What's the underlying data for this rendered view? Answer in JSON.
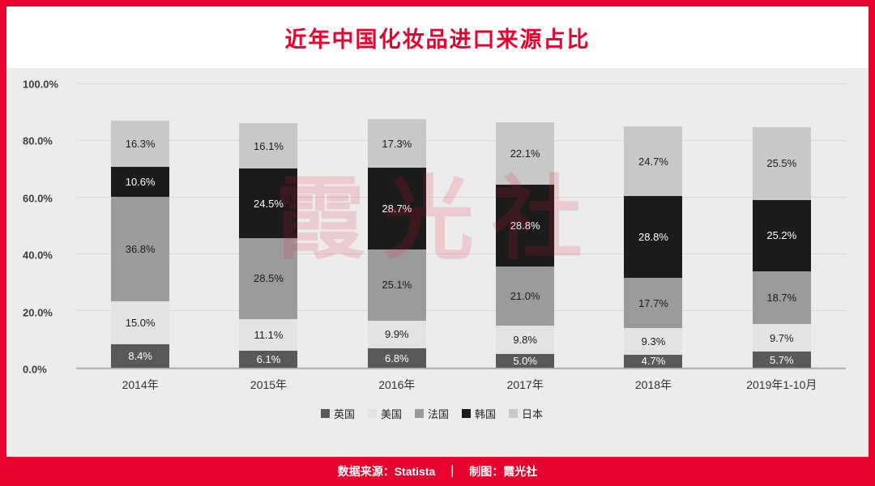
{
  "title": "近年中国化妆品进口来源占比",
  "watermark": "霞光社",
  "footer": {
    "source_label": "数据来源：Statista",
    "separator": "｜",
    "credit_label": "制图：霞光社"
  },
  "colors": {
    "accent_red": "#e6032e",
    "panel_bg": "#ececec"
  },
  "chart_data": {
    "type": "bar",
    "stacked": true,
    "title": "近年中国化妆品进口来源占比",
    "categories": [
      "2014年",
      "2015年",
      "2016年",
      "2017年",
      "2018年",
      "2019年1-10月"
    ],
    "series": [
      {
        "name": "英国",
        "color": "#595959",
        "label_color": "#ffffff",
        "values": [
          8.4,
          6.1,
          6.8,
          5.0,
          4.7,
          5.7
        ]
      },
      {
        "name": "美国",
        "color": "#e4e3e3",
        "label_color": "#1a1a1a",
        "values": [
          15.0,
          11.1,
          9.9,
          9.8,
          9.3,
          9.7
        ]
      },
      {
        "name": "法国",
        "color": "#9b9b9b",
        "label_color": "#1a1a1a",
        "values": [
          36.8,
          28.5,
          25.1,
          21.0,
          17.7,
          18.7
        ]
      },
      {
        "name": "韩国",
        "color": "#1b1b1b",
        "label_color": "#ffffff",
        "values": [
          10.6,
          24.5,
          28.7,
          28.8,
          28.8,
          25.2
        ]
      },
      {
        "name": "日本",
        "color": "#c8c8c8",
        "label_color": "#1a1a1a",
        "values": [
          16.3,
          16.1,
          17.3,
          22.1,
          24.7,
          25.5
        ]
      }
    ],
    "y_ticks": [
      "0.0%",
      "20.0%",
      "40.0%",
      "60.0%",
      "80.0%",
      "100.0%"
    ],
    "ylim": [
      0,
      100
    ],
    "grid": true,
    "legend_position": "bottom"
  }
}
